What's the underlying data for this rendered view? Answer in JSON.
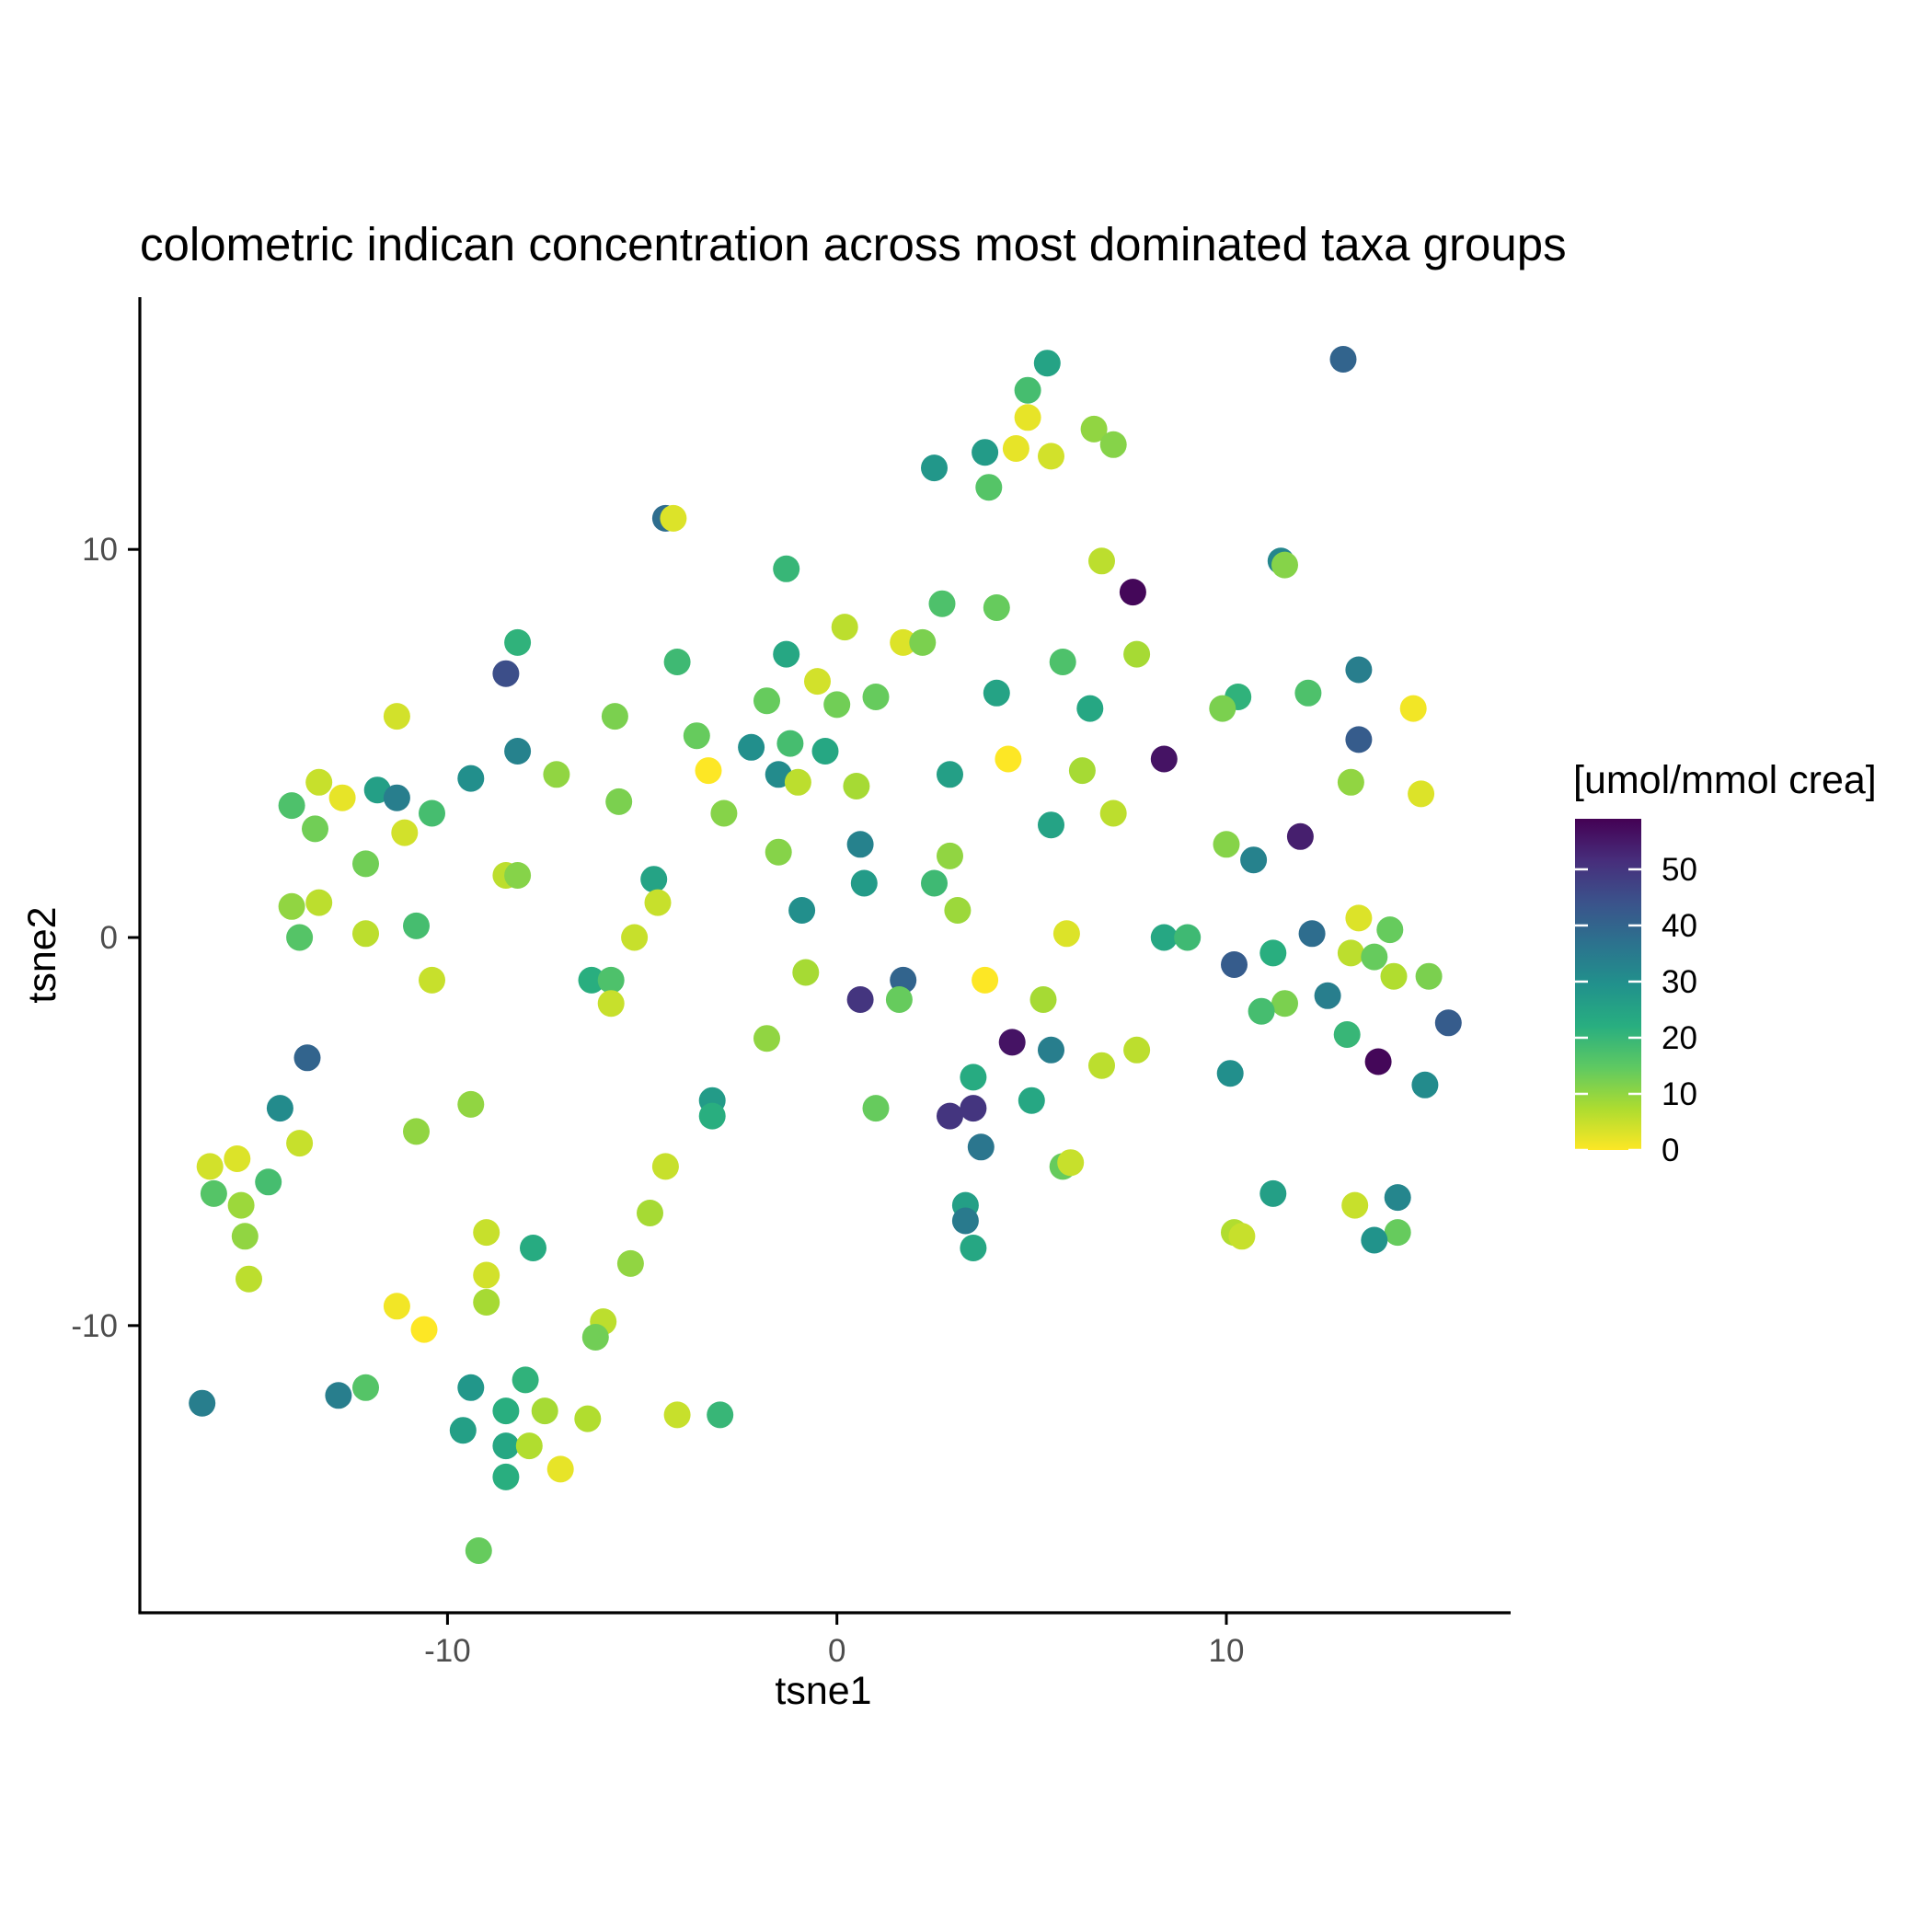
{
  "chart_data": {
    "type": "scatter",
    "title": "colometric indican concentration across most dominated taxa groups",
    "xlabel": "tsne1",
    "ylabel": "tsne2",
    "xlim": [
      -17.9,
      17.3
    ],
    "ylim": [
      -17.4,
      16.5
    ],
    "xticks": [
      -10,
      0,
      10
    ],
    "yticks": [
      -10,
      0,
      10
    ],
    "grid": false,
    "legend": {
      "title": "[umol/mmol crea]",
      "placement": "right",
      "ticks": [
        0,
        10,
        20,
        30,
        40,
        50
      ],
      "range": [
        0,
        59
      ],
      "colormap": "viridis-reversed"
    },
    "points": [
      {
        "x": 5.4,
        "y": 14.8,
        "c": 25
      },
      {
        "x": 4.9,
        "y": 14.1,
        "c": 18
      },
      {
        "x": 4.9,
        "y": 13.4,
        "c": 2
      },
      {
        "x": 6.6,
        "y": 13.1,
        "c": 10
      },
      {
        "x": 7.1,
        "y": 12.7,
        "c": 11
      },
      {
        "x": 4.6,
        "y": 12.6,
        "c": 2
      },
      {
        "x": 5.5,
        "y": 12.4,
        "c": 4
      },
      {
        "x": 3.8,
        "y": 12.5,
        "c": 27
      },
      {
        "x": 2.5,
        "y": 12.1,
        "c": 28
      },
      {
        "x": 3.9,
        "y": 11.6,
        "c": 16
      },
      {
        "x": 13.0,
        "y": 14.9,
        "c": 40
      },
      {
        "x": -4.4,
        "y": 10.8,
        "c": 38
      },
      {
        "x": -4.2,
        "y": 10.8,
        "c": 3
      },
      {
        "x": -1.3,
        "y": 9.5,
        "c": 20
      },
      {
        "x": 6.8,
        "y": 9.7,
        "c": 6
      },
      {
        "x": 7.6,
        "y": 8.9,
        "c": 58
      },
      {
        "x": 11.4,
        "y": 9.7,
        "c": 32
      },
      {
        "x": 11.5,
        "y": 9.6,
        "c": 11
      },
      {
        "x": 2.7,
        "y": 8.6,
        "c": 17
      },
      {
        "x": 4.1,
        "y": 8.5,
        "c": 14
      },
      {
        "x": 0.2,
        "y": 8.0,
        "c": 6
      },
      {
        "x": 1.7,
        "y": 7.6,
        "c": 3
      },
      {
        "x": 2.2,
        "y": 7.6,
        "c": 12
      },
      {
        "x": -8.2,
        "y": 7.6,
        "c": 21
      },
      {
        "x": -1.3,
        "y": 7.3,
        "c": 24
      },
      {
        "x": 7.7,
        "y": 7.3,
        "c": 8
      },
      {
        "x": -4.1,
        "y": 7.1,
        "c": 19
      },
      {
        "x": 5.8,
        "y": 7.1,
        "c": 17
      },
      {
        "x": -8.5,
        "y": 6.8,
        "c": 45
      },
      {
        "x": 13.4,
        "y": 6.9,
        "c": 34
      },
      {
        "x": -0.5,
        "y": 6.6,
        "c": 4
      },
      {
        "x": -1.8,
        "y": 6.1,
        "c": 14
      },
      {
        "x": 0.0,
        "y": 6.0,
        "c": 13
      },
      {
        "x": 1.0,
        "y": 6.2,
        "c": 14
      },
      {
        "x": 4.1,
        "y": 6.3,
        "c": 25
      },
      {
        "x": 12.1,
        "y": 6.3,
        "c": 17
      },
      {
        "x": 10.3,
        "y": 6.2,
        "c": 21
      },
      {
        "x": 9.9,
        "y": 5.9,
        "c": 12
      },
      {
        "x": 6.5,
        "y": 5.9,
        "c": 24
      },
      {
        "x": 14.8,
        "y": 5.9,
        "c": 1
      },
      {
        "x": -11.3,
        "y": 5.7,
        "c": 4
      },
      {
        "x": -5.7,
        "y": 5.7,
        "c": 12
      },
      {
        "x": -3.6,
        "y": 5.2,
        "c": 14
      },
      {
        "x": -2.2,
        "y": 4.9,
        "c": 30
      },
      {
        "x": -1.2,
        "y": 5.0,
        "c": 18
      },
      {
        "x": -0.3,
        "y": 4.8,
        "c": 24
      },
      {
        "x": 4.4,
        "y": 4.6,
        "c": 0
      },
      {
        "x": 8.4,
        "y": 4.6,
        "c": 56
      },
      {
        "x": 13.4,
        "y": 5.1,
        "c": 42
      },
      {
        "x": -8.2,
        "y": 4.8,
        "c": 33
      },
      {
        "x": -9.4,
        "y": 4.1,
        "c": 30
      },
      {
        "x": -7.2,
        "y": 4.2,
        "c": 10
      },
      {
        "x": -3.3,
        "y": 4.3,
        "c": 0
      },
      {
        "x": -1.5,
        "y": 4.2,
        "c": 31
      },
      {
        "x": -1.0,
        "y": 4.0,
        "c": 6
      },
      {
        "x": 2.9,
        "y": 4.2,
        "c": 26
      },
      {
        "x": 6.3,
        "y": 4.3,
        "c": 8
      },
      {
        "x": 13.2,
        "y": 4.0,
        "c": 10
      },
      {
        "x": 15.0,
        "y": 3.7,
        "c": 3
      },
      {
        "x": -13.3,
        "y": 4.0,
        "c": 5
      },
      {
        "x": -12.7,
        "y": 3.6,
        "c": 2
      },
      {
        "x": -11.8,
        "y": 3.8,
        "c": 26
      },
      {
        "x": -11.3,
        "y": 3.6,
        "c": 34
      },
      {
        "x": -14.0,
        "y": 3.4,
        "c": 17
      },
      {
        "x": -10.4,
        "y": 3.2,
        "c": 18
      },
      {
        "x": -5.6,
        "y": 3.5,
        "c": 12
      },
      {
        "x": -2.9,
        "y": 3.2,
        "c": 11
      },
      {
        "x": 0.5,
        "y": 3.9,
        "c": 8
      },
      {
        "x": 5.5,
        "y": 2.9,
        "c": 25
      },
      {
        "x": 7.1,
        "y": 3.2,
        "c": 6
      },
      {
        "x": -13.4,
        "y": 2.8,
        "c": 13
      },
      {
        "x": -11.1,
        "y": 2.7,
        "c": 4
      },
      {
        "x": 0.6,
        "y": 2.4,
        "c": 33
      },
      {
        "x": -1.5,
        "y": 2.2,
        "c": 11
      },
      {
        "x": 2.9,
        "y": 2.1,
        "c": 10
      },
      {
        "x": 10.0,
        "y": 2.4,
        "c": 11
      },
      {
        "x": 11.9,
        "y": 2.6,
        "c": 54
      },
      {
        "x": 10.7,
        "y": 2.0,
        "c": 33
      },
      {
        "x": -12.1,
        "y": 1.9,
        "c": 13
      },
      {
        "x": -8.5,
        "y": 1.6,
        "c": 6
      },
      {
        "x": -8.2,
        "y": 1.6,
        "c": 11
      },
      {
        "x": -4.7,
        "y": 1.5,
        "c": 25
      },
      {
        "x": 0.7,
        "y": 1.4,
        "c": 27
      },
      {
        "x": 2.5,
        "y": 1.4,
        "c": 19
      },
      {
        "x": -14.0,
        "y": 0.8,
        "c": 10
      },
      {
        "x": -13.3,
        "y": 0.9,
        "c": 6
      },
      {
        "x": -4.6,
        "y": 0.9,
        "c": 5
      },
      {
        "x": -0.9,
        "y": 0.7,
        "c": 30
      },
      {
        "x": 3.1,
        "y": 0.7,
        "c": 9
      },
      {
        "x": -10.8,
        "y": 0.3,
        "c": 18
      },
      {
        "x": -12.1,
        "y": 0.1,
        "c": 6
      },
      {
        "x": -13.8,
        "y": 0.0,
        "c": 16
      },
      {
        "x": -5.2,
        "y": 0.0,
        "c": 5
      },
      {
        "x": 5.9,
        "y": 0.1,
        "c": 3
      },
      {
        "x": 8.4,
        "y": 0.0,
        "c": 24
      },
      {
        "x": 9.0,
        "y": 0.0,
        "c": 19
      },
      {
        "x": 12.2,
        "y": 0.1,
        "c": 38
      },
      {
        "x": 13.4,
        "y": 0.5,
        "c": 3
      },
      {
        "x": 14.2,
        "y": 0.2,
        "c": 14
      },
      {
        "x": 13.2,
        "y": -0.4,
        "c": 6
      },
      {
        "x": 13.8,
        "y": -0.5,
        "c": 14
      },
      {
        "x": 11.2,
        "y": -0.4,
        "c": 22
      },
      {
        "x": 10.2,
        "y": -0.7,
        "c": 42
      },
      {
        "x": -10.4,
        "y": -1.1,
        "c": 5
      },
      {
        "x": -6.3,
        "y": -1.1,
        "c": 22
      },
      {
        "x": -5.8,
        "y": -1.1,
        "c": 17
      },
      {
        "x": -0.8,
        "y": -0.9,
        "c": 8
      },
      {
        "x": 1.7,
        "y": -1.1,
        "c": 40
      },
      {
        "x": 3.8,
        "y": -1.1,
        "c": 0
      },
      {
        "x": 14.3,
        "y": -1.0,
        "c": 7
      },
      {
        "x": 15.2,
        "y": -1.0,
        "c": 12
      },
      {
        "x": -5.8,
        "y": -1.7,
        "c": 5
      },
      {
        "x": 0.6,
        "y": -1.6,
        "c": 50
      },
      {
        "x": 1.6,
        "y": -1.6,
        "c": 14
      },
      {
        "x": 5.3,
        "y": -1.6,
        "c": 8
      },
      {
        "x": 12.6,
        "y": -1.5,
        "c": 34
      },
      {
        "x": 11.5,
        "y": -1.7,
        "c": 12
      },
      {
        "x": 10.9,
        "y": -1.9,
        "c": 18
      },
      {
        "x": 15.7,
        "y": -2.2,
        "c": 42
      },
      {
        "x": -1.8,
        "y": -2.6,
        "c": 10
      },
      {
        "x": 4.5,
        "y": -2.7,
        "c": 56
      },
      {
        "x": 5.5,
        "y": -2.9,
        "c": 34
      },
      {
        "x": 13.1,
        "y": -2.5,
        "c": 20
      },
      {
        "x": 13.9,
        "y": -3.2,
        "c": 58
      },
      {
        "x": 7.7,
        "y": -2.9,
        "c": 6
      },
      {
        "x": 6.8,
        "y": -3.3,
        "c": 6
      },
      {
        "x": -13.6,
        "y": -3.1,
        "c": 40
      },
      {
        "x": 3.5,
        "y": -3.6,
        "c": 23
      },
      {
        "x": 10.1,
        "y": -3.5,
        "c": 30
      },
      {
        "x": 15.1,
        "y": -3.8,
        "c": 31
      },
      {
        "x": -14.3,
        "y": -4.4,
        "c": 31
      },
      {
        "x": -9.4,
        "y": -4.3,
        "c": 10
      },
      {
        "x": -3.2,
        "y": -4.2,
        "c": 27
      },
      {
        "x": -3.2,
        "y": -4.6,
        "c": 22
      },
      {
        "x": 1.0,
        "y": -4.4,
        "c": 14
      },
      {
        "x": 2.9,
        "y": -4.6,
        "c": 50
      },
      {
        "x": 3.5,
        "y": -4.4,
        "c": 50
      },
      {
        "x": 5.0,
        "y": -4.2,
        "c": 24
      },
      {
        "x": -10.8,
        "y": -5.0,
        "c": 10
      },
      {
        "x": -13.8,
        "y": -5.3,
        "c": 5
      },
      {
        "x": 3.7,
        "y": -5.4,
        "c": 36
      },
      {
        "x": -16.1,
        "y": -5.9,
        "c": 4
      },
      {
        "x": -15.4,
        "y": -5.7,
        "c": 3
      },
      {
        "x": -4.4,
        "y": -5.9,
        "c": 5
      },
      {
        "x": 5.8,
        "y": -5.9,
        "c": 14
      },
      {
        "x": 6.0,
        "y": -5.8,
        "c": 5
      },
      {
        "x": -16.0,
        "y": -6.6,
        "c": 16
      },
      {
        "x": -14.6,
        "y": -6.3,
        "c": 18
      },
      {
        "x": -15.3,
        "y": -6.9,
        "c": 9
      },
      {
        "x": 11.2,
        "y": -6.6,
        "c": 26
      },
      {
        "x": 14.4,
        "y": -6.7,
        "c": 32
      },
      {
        "x": 3.3,
        "y": -6.9,
        "c": 26
      },
      {
        "x": 13.3,
        "y": -6.9,
        "c": 5
      },
      {
        "x": -4.8,
        "y": -7.1,
        "c": 8
      },
      {
        "x": 3.3,
        "y": -7.3,
        "c": 35
      },
      {
        "x": -9.0,
        "y": -7.6,
        "c": 5
      },
      {
        "x": -15.2,
        "y": -7.7,
        "c": 10
      },
      {
        "x": 10.2,
        "y": -7.6,
        "c": 7
      },
      {
        "x": 10.4,
        "y": -7.7,
        "c": 5
      },
      {
        "x": 14.4,
        "y": -7.6,
        "c": 14
      },
      {
        "x": 13.8,
        "y": -7.8,
        "c": 29
      },
      {
        "x": 3.5,
        "y": -8.0,
        "c": 24
      },
      {
        "x": -7.8,
        "y": -8.0,
        "c": 23
      },
      {
        "x": -5.3,
        "y": -8.4,
        "c": 10
      },
      {
        "x": -15.1,
        "y": -8.8,
        "c": 6
      },
      {
        "x": -9.0,
        "y": -8.7,
        "c": 4
      },
      {
        "x": -9.0,
        "y": -9.4,
        "c": 8
      },
      {
        "x": -11.3,
        "y": -9.5,
        "c": 1
      },
      {
        "x": -10.6,
        "y": -10.1,
        "c": 0
      },
      {
        "x": -6.0,
        "y": -9.9,
        "c": 6
      },
      {
        "x": -6.2,
        "y": -10.3,
        "c": 13
      },
      {
        "x": -16.3,
        "y": -12.0,
        "c": 34
      },
      {
        "x": -12.8,
        "y": -11.8,
        "c": 34
      },
      {
        "x": -12.1,
        "y": -11.6,
        "c": 16
      },
      {
        "x": -9.4,
        "y": -11.6,
        "c": 28
      },
      {
        "x": -8.0,
        "y": -11.4,
        "c": 21
      },
      {
        "x": -8.5,
        "y": -12.2,
        "c": 22
      },
      {
        "x": -7.5,
        "y": -12.2,
        "c": 8
      },
      {
        "x": -6.4,
        "y": -12.4,
        "c": 7
      },
      {
        "x": -4.1,
        "y": -12.3,
        "c": 5
      },
      {
        "x": -3.0,
        "y": -12.3,
        "c": 20
      },
      {
        "x": -9.6,
        "y": -12.7,
        "c": 26
      },
      {
        "x": -8.5,
        "y": -13.1,
        "c": 24
      },
      {
        "x": -7.9,
        "y": -13.1,
        "c": 7
      },
      {
        "x": -7.1,
        "y": -13.7,
        "c": 2
      },
      {
        "x": -8.5,
        "y": -13.9,
        "c": 22
      },
      {
        "x": -9.2,
        "y": -15.8,
        "c": 14
      }
    ]
  }
}
